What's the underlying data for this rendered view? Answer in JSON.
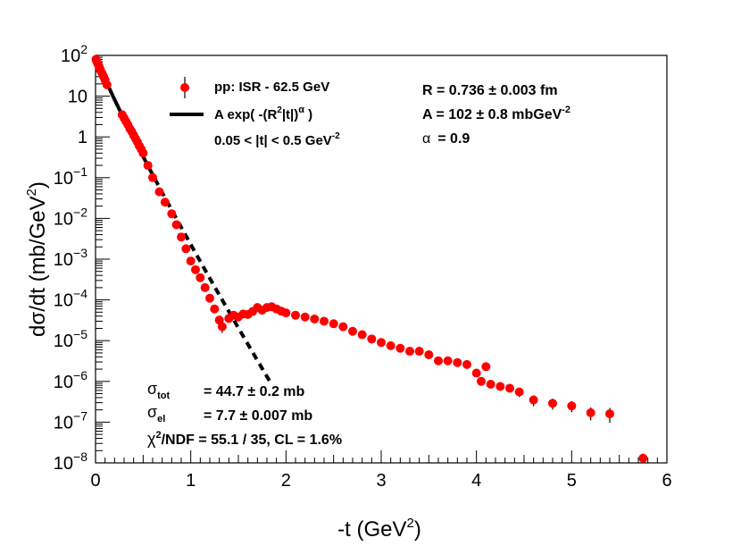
{
  "chart_data": {
    "type": "scatter",
    "xlabel": "-t (GeV",
    "xlabel_sup": "2",
    "xlabel_close": ")",
    "ylabel": "dσ/dt (mb/GeV",
    "ylabel_sup": "2",
    "ylabel_close": ")",
    "xlim": [
      0,
      6
    ],
    "ylim": [
      1e-08,
      100
    ],
    "yscale": "log",
    "x_ticks": [
      "0",
      "1",
      "2",
      "3",
      "4",
      "5",
      "6"
    ],
    "y_ticks": [
      {
        "exp": 2,
        "base": "10",
        "sup": "2"
      },
      {
        "exp": 1,
        "base": "10",
        "sup": ""
      },
      {
        "exp": 0,
        "base": "1",
        "sup": ""
      },
      {
        "exp": -1,
        "base": "10",
        "sup": "−1"
      },
      {
        "exp": -2,
        "base": "10",
        "sup": "−2"
      },
      {
        "exp": -3,
        "base": "10",
        "sup": "−3"
      },
      {
        "exp": -4,
        "base": "10",
        "sup": "−4"
      },
      {
        "exp": -5,
        "base": "10",
        "sup": "−5"
      },
      {
        "exp": -6,
        "base": "10",
        "sup": "−6"
      },
      {
        "exp": -7,
        "base": "10",
        "sup": "−7"
      },
      {
        "exp": -8,
        "base": "10",
        "sup": "−8"
      }
    ],
    "series": [
      {
        "name": "pp: ISR - 62.5 GeV",
        "color": "#ff0000",
        "points": [
          [
            0.005,
            80,
            0
          ],
          [
            0.015,
            70,
            0
          ],
          [
            0.025,
            62,
            0
          ],
          [
            0.035,
            55,
            0
          ],
          [
            0.045,
            48,
            0
          ],
          [
            0.055,
            42,
            0
          ],
          [
            0.07,
            36,
            0
          ],
          [
            0.085,
            30,
            0
          ],
          [
            0.1,
            25,
            0
          ],
          [
            0.12,
            19,
            0
          ],
          [
            0.28,
            3.5,
            0
          ],
          [
            0.3,
            2.9,
            0
          ],
          [
            0.32,
            2.4,
            0
          ],
          [
            0.34,
            2.0,
            0
          ],
          [
            0.36,
            1.6,
            0
          ],
          [
            0.38,
            1.35,
            0
          ],
          [
            0.4,
            1.1,
            0
          ],
          [
            0.42,
            0.9,
            0
          ],
          [
            0.44,
            0.75,
            0
          ],
          [
            0.46,
            0.6,
            0
          ],
          [
            0.48,
            0.5,
            0
          ],
          [
            0.5,
            0.4,
            0
          ],
          [
            0.55,
            0.2,
            0
          ],
          [
            0.6,
            0.1,
            0
          ],
          [
            0.67,
            0.045,
            0
          ],
          [
            0.73,
            0.025,
            0
          ],
          [
            0.8,
            0.013,
            0
          ],
          [
            0.85,
            0.007,
            0
          ],
          [
            0.9,
            0.0035,
            0
          ],
          [
            0.95,
            0.0018,
            0
          ],
          [
            1.0,
            0.0009,
            0
          ],
          [
            1.05,
            0.00055,
            0
          ],
          [
            1.1,
            0.00035,
            0
          ],
          [
            1.15,
            0.0002,
            0
          ],
          [
            1.2,
            0.00011,
            0
          ],
          [
            1.25,
            6e-05,
            0
          ],
          [
            1.3,
            3.2e-05,
            0
          ],
          [
            1.33,
            2.2e-05,
            0.3
          ],
          [
            1.4,
            3.5e-05,
            0
          ],
          [
            1.45,
            4.2e-05,
            0
          ],
          [
            1.5,
            3.8e-05,
            0
          ],
          [
            1.55,
            4.5e-05,
            0
          ],
          [
            1.6,
            4.4e-05,
            0
          ],
          [
            1.65,
            5.2e-05,
            0
          ],
          [
            1.7,
            6.5e-05,
            0
          ],
          [
            1.75,
            5.6e-05,
            0
          ],
          [
            1.8,
            6.5e-05,
            0
          ],
          [
            1.85,
            6.8e-05,
            0
          ],
          [
            1.9,
            6e-05,
            0
          ],
          [
            1.95,
            5.3e-05,
            0
          ],
          [
            2.0,
            4.8e-05,
            0
          ],
          [
            2.1,
            4.2e-05,
            0
          ],
          [
            2.2,
            3.8e-05,
            0
          ],
          [
            2.3,
            3.4e-05,
            0
          ],
          [
            2.4,
            3e-05,
            0
          ],
          [
            2.5,
            2.6e-05,
            0
          ],
          [
            2.6,
            2.2e-05,
            0
          ],
          [
            2.7,
            1.7e-05,
            0
          ],
          [
            2.8,
            1.4e-05,
            0
          ],
          [
            2.9,
            1.1e-05,
            0
          ],
          [
            3.0,
            9e-06,
            0
          ],
          [
            3.1,
            7.5e-06,
            0
          ],
          [
            3.2,
            6.5e-06,
            0
          ],
          [
            3.3,
            5.5e-06,
            0
          ],
          [
            3.4,
            5.5e-06,
            0
          ],
          [
            3.5,
            4.5e-06,
            0
          ],
          [
            3.6,
            3.2e-06,
            0
          ],
          [
            3.7,
            3.2e-06,
            0
          ],
          [
            3.8,
            2.9e-06,
            0
          ],
          [
            3.9,
            2.6e-06,
            0
          ],
          [
            4.0,
            1.6e-06,
            0.15
          ],
          [
            4.1,
            2.3e-06,
            0
          ],
          [
            4.05,
            1e-06,
            0.2
          ],
          [
            4.15,
            8.5e-07,
            0.2
          ],
          [
            4.25,
            7.5e-07,
            0.2
          ],
          [
            4.35,
            6.8e-07,
            0.2
          ],
          [
            4.45,
            5.5e-07,
            0.25
          ],
          [
            4.6,
            3.5e-07,
            0.3
          ],
          [
            4.8,
            2.9e-07,
            0.3
          ],
          [
            5.0,
            2.5e-07,
            0.3
          ],
          [
            5.2,
            1.7e-07,
            0.35
          ],
          [
            5.4,
            1.6e-07,
            0.4
          ],
          [
            5.75,
            1.3e-08,
            0.3
          ]
        ]
      }
    ],
    "fit": {
      "name": "A exp( -(R^2|t|)^α )",
      "A": 102,
      "R": 0.736,
      "alpha": 0.9,
      "solid_range": [
        0.0,
        0.5
      ],
      "dashed_range": [
        0.5,
        1.85
      ]
    },
    "legend": {
      "data_label": "pp: ISR - 62.5 GeV",
      "fit_label_prefix": "A exp( -(R",
      "fit_label_sup1": "2",
      "fit_label_mid": "|t|)",
      "fit_label_sup2": "α",
      "fit_label_suffix": " )",
      "range_label_prefix": "0.05 < |t| < 0.5 GeV",
      "range_label_sup": "-2"
    },
    "fit_results": {
      "R_label": "R = 0.736 ± 0.003 fm",
      "A_label_prefix": "A = 102 ± 0.8 mbGeV",
      "A_label_sup": "-2",
      "alpha_symbol": "α",
      "alpha_value": "= 0.9"
    },
    "annotations": {
      "sigma_symbol": "σ",
      "sigma_tot_sub": "tot",
      "sigma_tot_value": "= 44.7 ± 0.2 mb",
      "sigma_el_sub": "el",
      "sigma_el_value": "= 7.7 ± 0.007 mb",
      "chi_symbol": "χ",
      "chi_sup": "2",
      "chi_text": "/NDF = 55.1 / 35,  CL = 1.6%"
    }
  }
}
